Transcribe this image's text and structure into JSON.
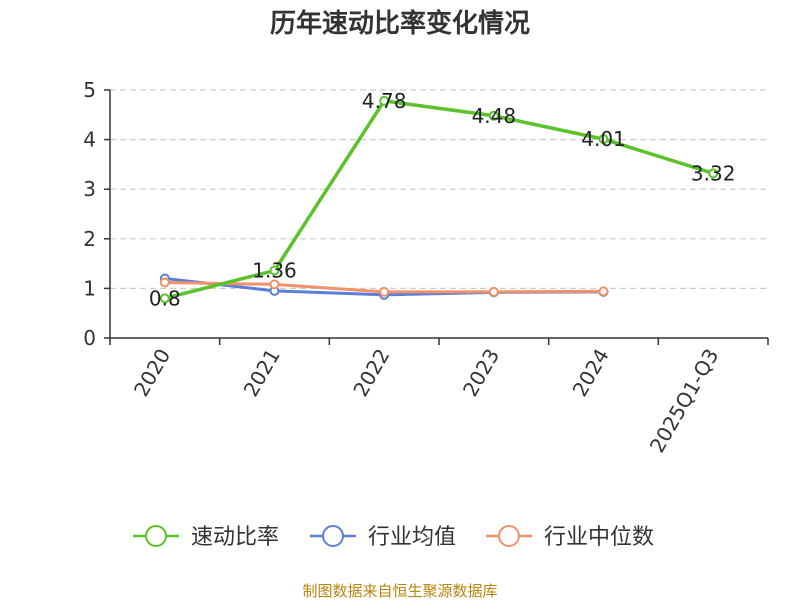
{
  "chart_data": {
    "type": "line",
    "title": "历年速动比率变化情况",
    "categories": [
      "2020",
      "2021",
      "2022",
      "2023",
      "2024",
      "2025Q1-Q3"
    ],
    "ylim": [
      0,
      5
    ],
    "yticks": [
      0,
      1,
      2,
      3,
      4,
      5
    ],
    "grid": true,
    "legend_position": "bottom",
    "series": [
      {
        "name": "速动比率",
        "color": "#5bc22c",
        "values": [
          0.8,
          1.36,
          4.78,
          4.48,
          4.01,
          3.32
        ],
        "labels": [
          "0.8",
          "1.36",
          "4.78",
          "4.48",
          "4.01",
          "3.32"
        ]
      },
      {
        "name": "行业均值",
        "color": "#5b7fd8",
        "values": [
          1.2,
          0.95,
          0.87,
          0.92,
          0.93,
          null
        ]
      },
      {
        "name": "行业中位数",
        "color": "#f0916a",
        "values": [
          1.12,
          1.08,
          0.93,
          0.93,
          0.94,
          null
        ]
      }
    ]
  },
  "source": "制图数据来自恒生聚源数据库"
}
